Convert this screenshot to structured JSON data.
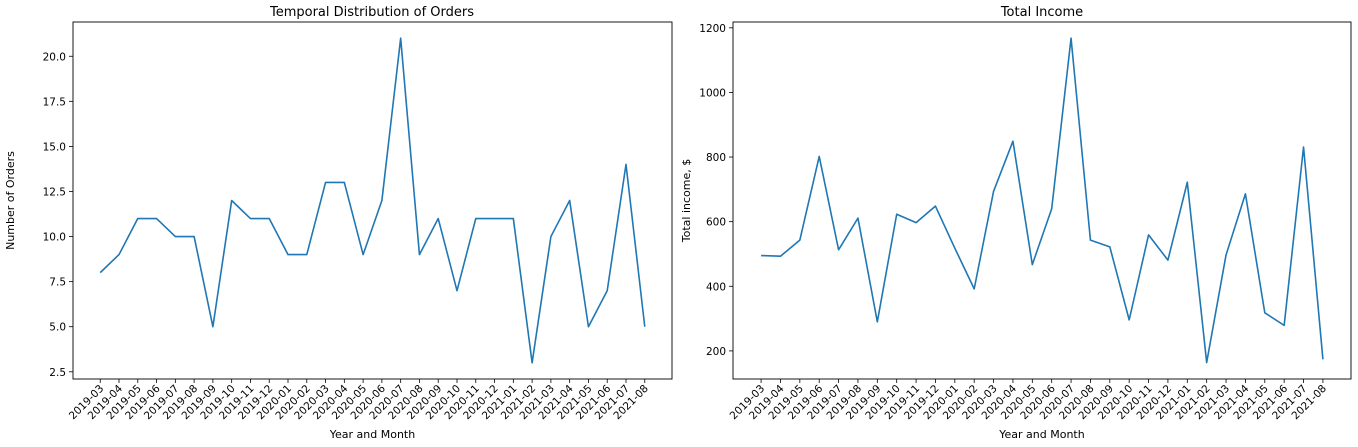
{
  "chart_data": [
    {
      "type": "line",
      "title": "Temporal Distribution of Orders",
      "xlabel": "Year and Month",
      "ylabel": "Number of Orders",
      "categories": [
        "2019-03",
        "2019-04",
        "2019-05",
        "2019-06",
        "2019-07",
        "2019-08",
        "2019-09",
        "2019-10",
        "2019-11",
        "2019-12",
        "2020-01",
        "2020-02",
        "2020-03",
        "2020-04",
        "2020-05",
        "2020-06",
        "2020-07",
        "2020-08",
        "2020-09",
        "2020-10",
        "2020-11",
        "2020-12",
        "2021-01",
        "2021-02",
        "2021-03",
        "2021-04",
        "2021-05",
        "2021-06",
        "2021-07",
        "2021-08"
      ],
      "values": [
        8,
        9,
        11,
        11,
        10,
        10,
        5,
        12,
        11,
        11,
        9,
        9,
        13,
        13,
        9,
        12,
        21,
        9,
        11,
        7,
        11,
        11,
        11,
        3,
        10,
        12,
        5,
        7,
        14,
        5
      ],
      "ylim": [
        2.1,
        21.9
      ],
      "yticks": [
        2.5,
        5.0,
        7.5,
        10.0,
        12.5,
        15.0,
        17.5,
        20.0
      ],
      "ytick_decimals": 1,
      "grid": false,
      "color": "#1f77b4"
    },
    {
      "type": "line",
      "title": "Total Income",
      "xlabel": "Year and Month",
      "ylabel": "Total income, $",
      "categories": [
        "2019-03",
        "2019-04",
        "2019-05",
        "2019-06",
        "2019-07",
        "2019-08",
        "2019-09",
        "2019-10",
        "2019-11",
        "2019-12",
        "2020-01",
        "2020-02",
        "2020-03",
        "2020-04",
        "2020-05",
        "2020-06",
        "2020-07",
        "2020-08",
        "2020-09",
        "2020-10",
        "2020-11",
        "2020-12",
        "2021-01",
        "2021-02",
        "2021-03",
        "2021-04",
        "2021-05",
        "2021-06",
        "2021-07",
        "2021-08"
      ],
      "values": [
        495,
        493,
        543,
        802,
        513,
        611,
        290,
        623,
        597,
        648,
        518,
        392,
        694,
        849,
        467,
        640,
        1168,
        543,
        522,
        296,
        559,
        481,
        722,
        164,
        497,
        686,
        318,
        279,
        831,
        174
      ],
      "ylim": [
        113,
        1218
      ],
      "yticks": [
        200,
        400,
        600,
        800,
        1000,
        1200
      ],
      "ytick_decimals": 0,
      "grid": false,
      "color": "#1f77b4"
    }
  ]
}
